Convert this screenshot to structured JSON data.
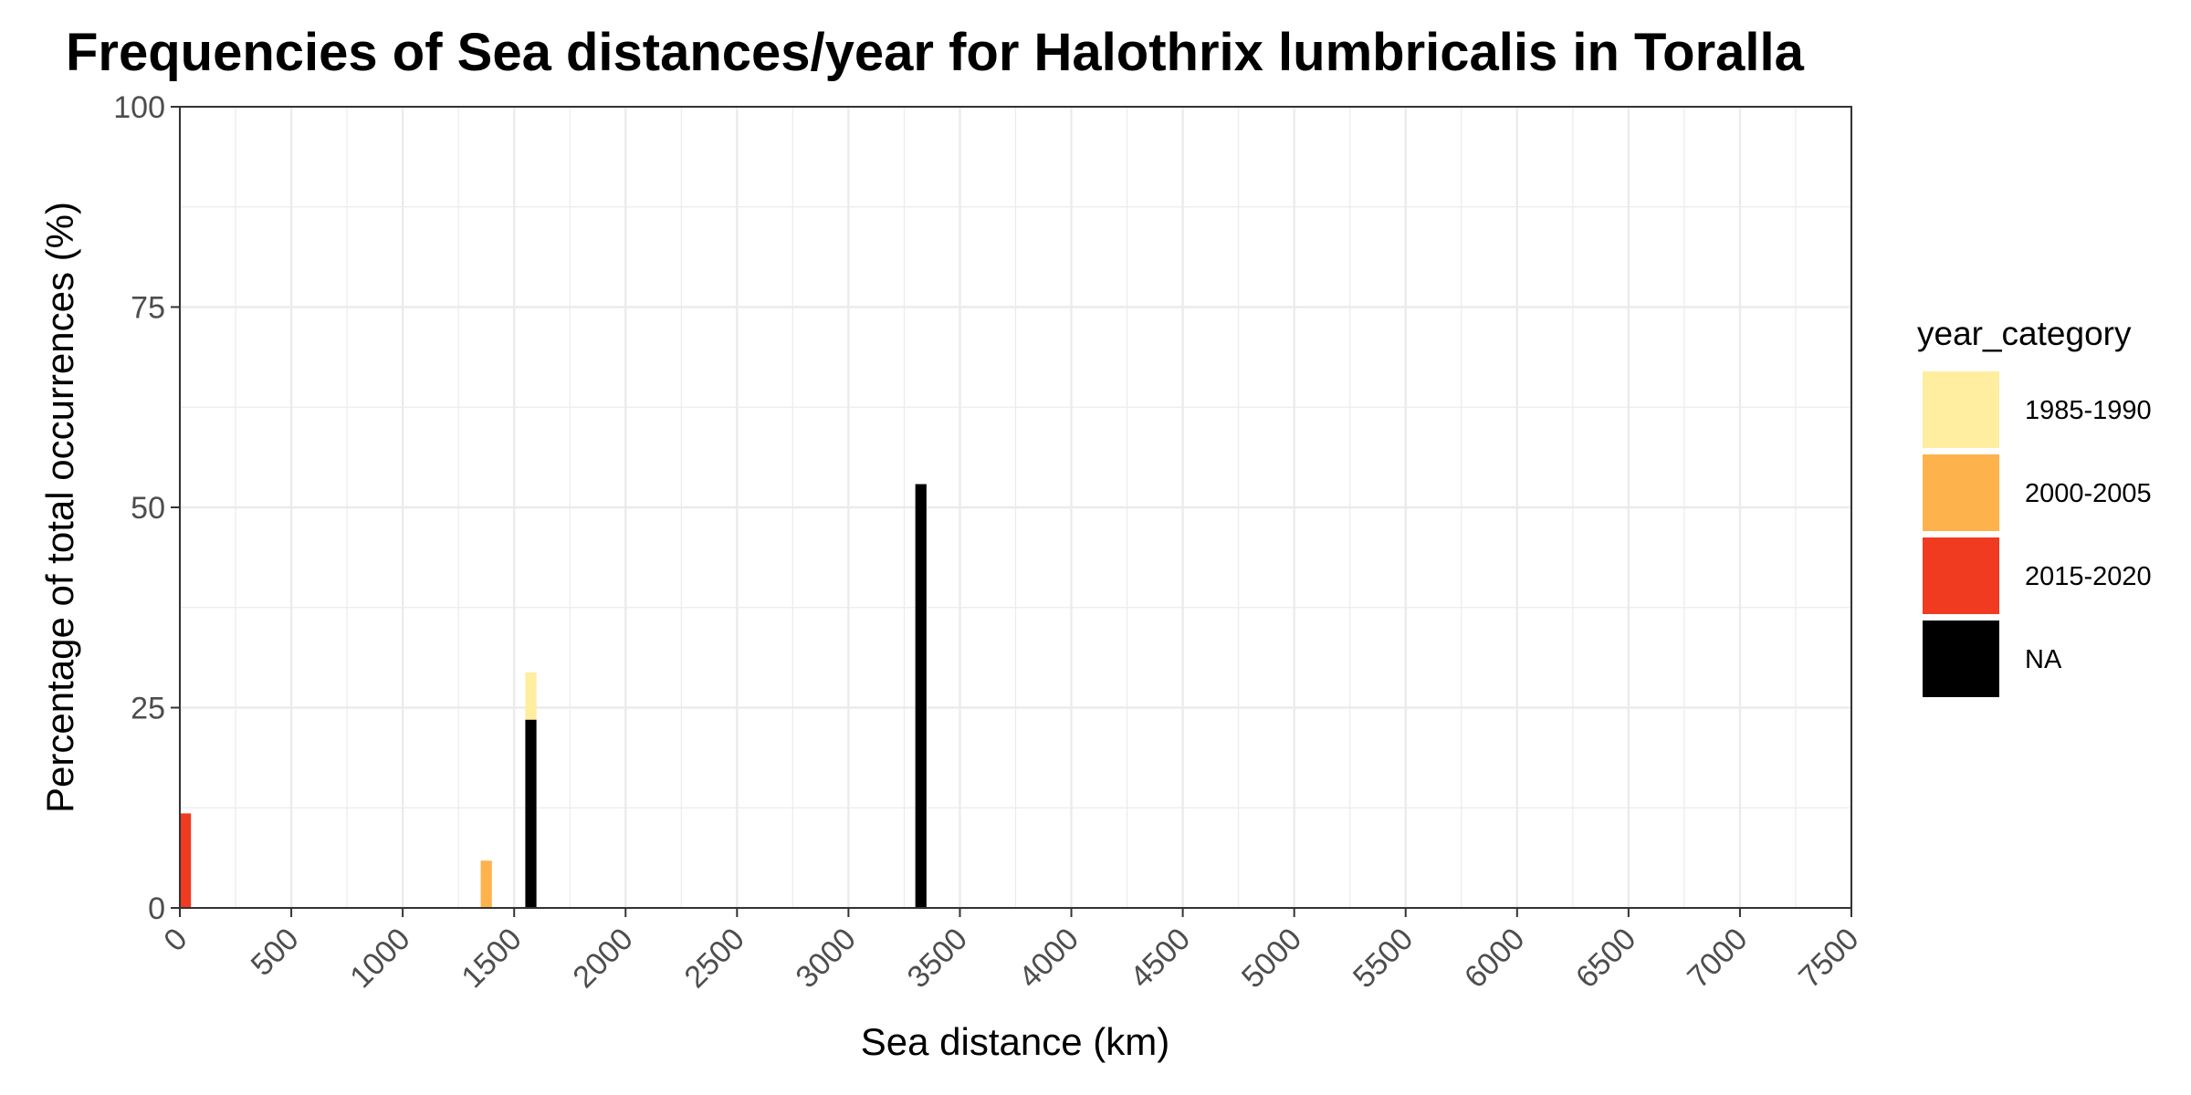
{
  "chart_data": {
    "type": "bar",
    "stacked": true,
    "title": "Frequencies of Sea distances/year for Halothrix lumbricalis in Toralla",
    "xlabel": "Sea distance (km)",
    "ylabel": "Percentage of total occurrences (%)",
    "xlim": [
      0,
      7500
    ],
    "ylim": [
      0,
      100
    ],
    "x_ticks": [
      0,
      500,
      1000,
      1500,
      2000,
      2500,
      3000,
      3500,
      4000,
      4500,
      5000,
      5500,
      6000,
      6500,
      7000,
      7500
    ],
    "y_ticks": [
      0,
      25,
      50,
      75,
      100
    ],
    "bin_width": 50,
    "grid": true,
    "legend": {
      "title": "year_category",
      "position": "right",
      "entries": [
        "1985-1990",
        "2000-2005",
        "2015-2020",
        "NA"
      ]
    },
    "colors": {
      "1985-1990": "#FFEDA0",
      "2000-2005": "#FEB24C",
      "2015-2020": "#F03B20",
      "NA": "#000000"
    },
    "stack_order": [
      "NA",
      "2015-2020",
      "2000-2005",
      "1985-1990"
    ],
    "bars": [
      {
        "x": 25,
        "segments": {
          "2015-2020": 11.8
        }
      },
      {
        "x": 1375,
        "segments": {
          "2000-2005": 5.9
        }
      },
      {
        "x": 1575,
        "segments": {
          "NA": 23.5,
          "1985-1990": 5.9
        }
      },
      {
        "x": 3325,
        "segments": {
          "NA": 52.9
        }
      }
    ]
  }
}
